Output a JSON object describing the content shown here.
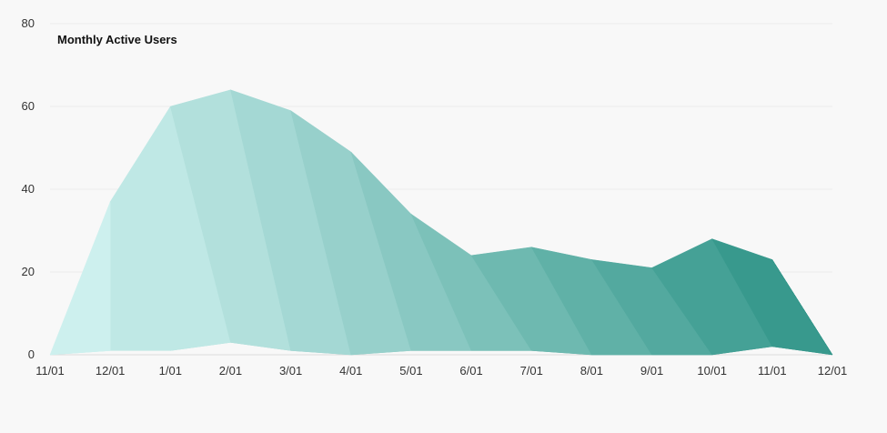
{
  "chart_data": {
    "type": "area",
    "title": "Monthly Active Users",
    "xlabel": "",
    "ylabel": "",
    "ylim": [
      0,
      80
    ],
    "yticks": [
      "0",
      "20",
      "40",
      "60",
      "80"
    ],
    "categories": [
      "11/01",
      "12/01",
      "1/01",
      "2/01",
      "3/01",
      "4/01",
      "5/01",
      "6/01",
      "7/01",
      "8/01",
      "9/01",
      "10/01",
      "11/01",
      "12/01"
    ],
    "series": [
      {
        "values": [
          0,
          37,
          60,
          64,
          59,
          49,
          34,
          24,
          26,
          23,
          21,
          28,
          23,
          0
        ]
      },
      {
        "values": [
          0,
          1,
          1,
          3,
          1,
          0,
          1,
          1,
          1,
          0,
          0,
          0,
          2,
          0
        ]
      }
    ],
    "grid": true,
    "colors": {
      "gradient_start": "#cdf0ee",
      "gradient_end": "#2a9184",
      "gridline": "#ececec",
      "background": "#f8f8f8"
    }
  }
}
